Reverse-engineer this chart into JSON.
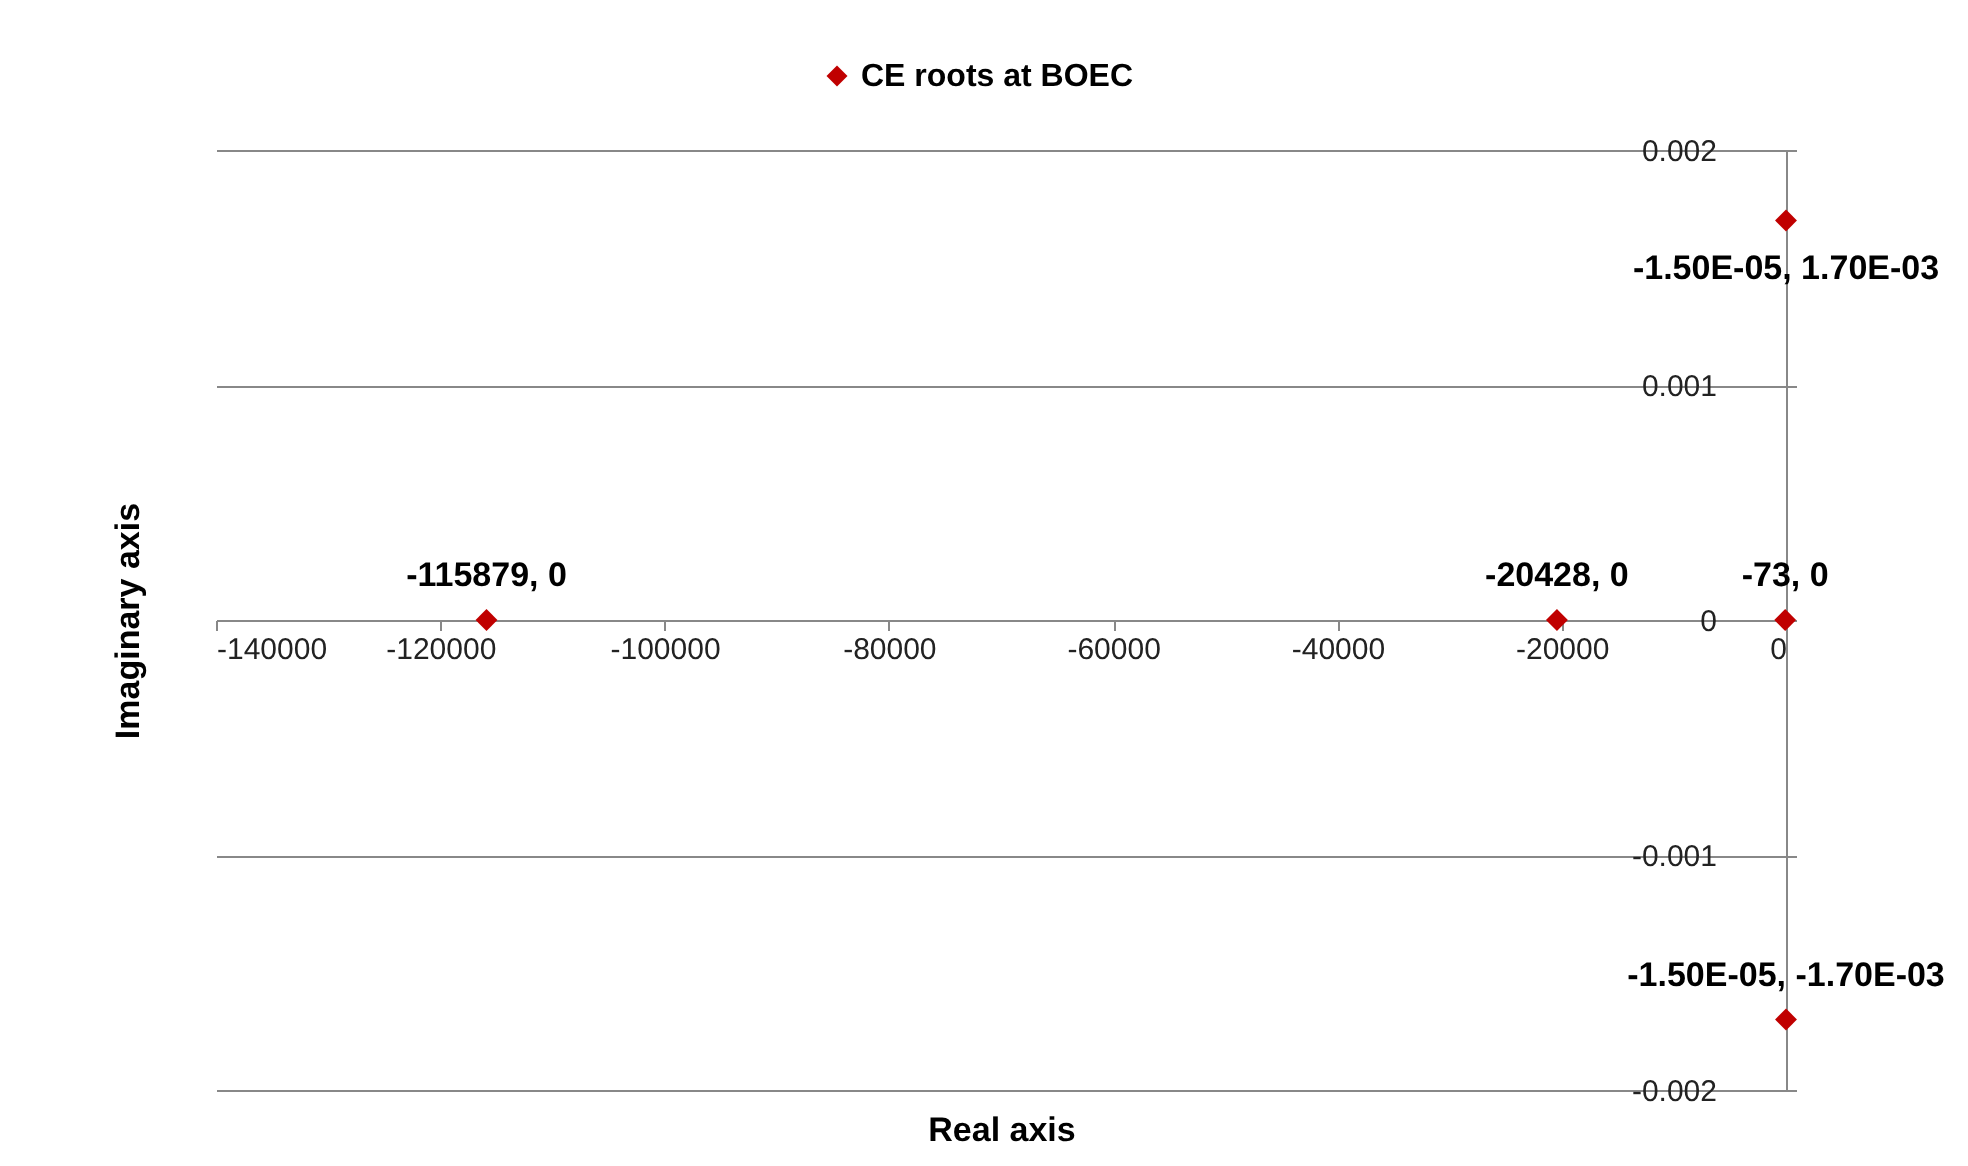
{
  "chart_data": {
    "type": "scatter",
    "xlabel": "Real axis",
    "ylabel": "Imaginary axis",
    "x": [
      -115879,
      -20428,
      -73,
      -1.5e-05,
      -1.5e-05
    ],
    "series": [
      {
        "name": "CE roots at BOEC",
        "color": "#c00000",
        "values": [
          0,
          0,
          0,
          0.0017,
          -0.0017
        ],
        "value_labels": [
          "-115879, 0",
          "-20428, 0",
          "-73, 0",
          "-1.50E-05, 1.70E-03",
          "-1.50E-05, -1.70E-03"
        ]
      }
    ],
    "xlim": [
      -140000,
      0
    ],
    "xticks": [
      -140000,
      -120000,
      -100000,
      -80000,
      -60000,
      -40000,
      -20000,
      0
    ],
    "ylim": [
      -0.002,
      0.002
    ],
    "yticks": [
      -0.002,
      -0.001,
      0,
      0.001,
      0.002
    ],
    "grid": "y",
    "legend": "top",
    "marker": "diamond"
  }
}
